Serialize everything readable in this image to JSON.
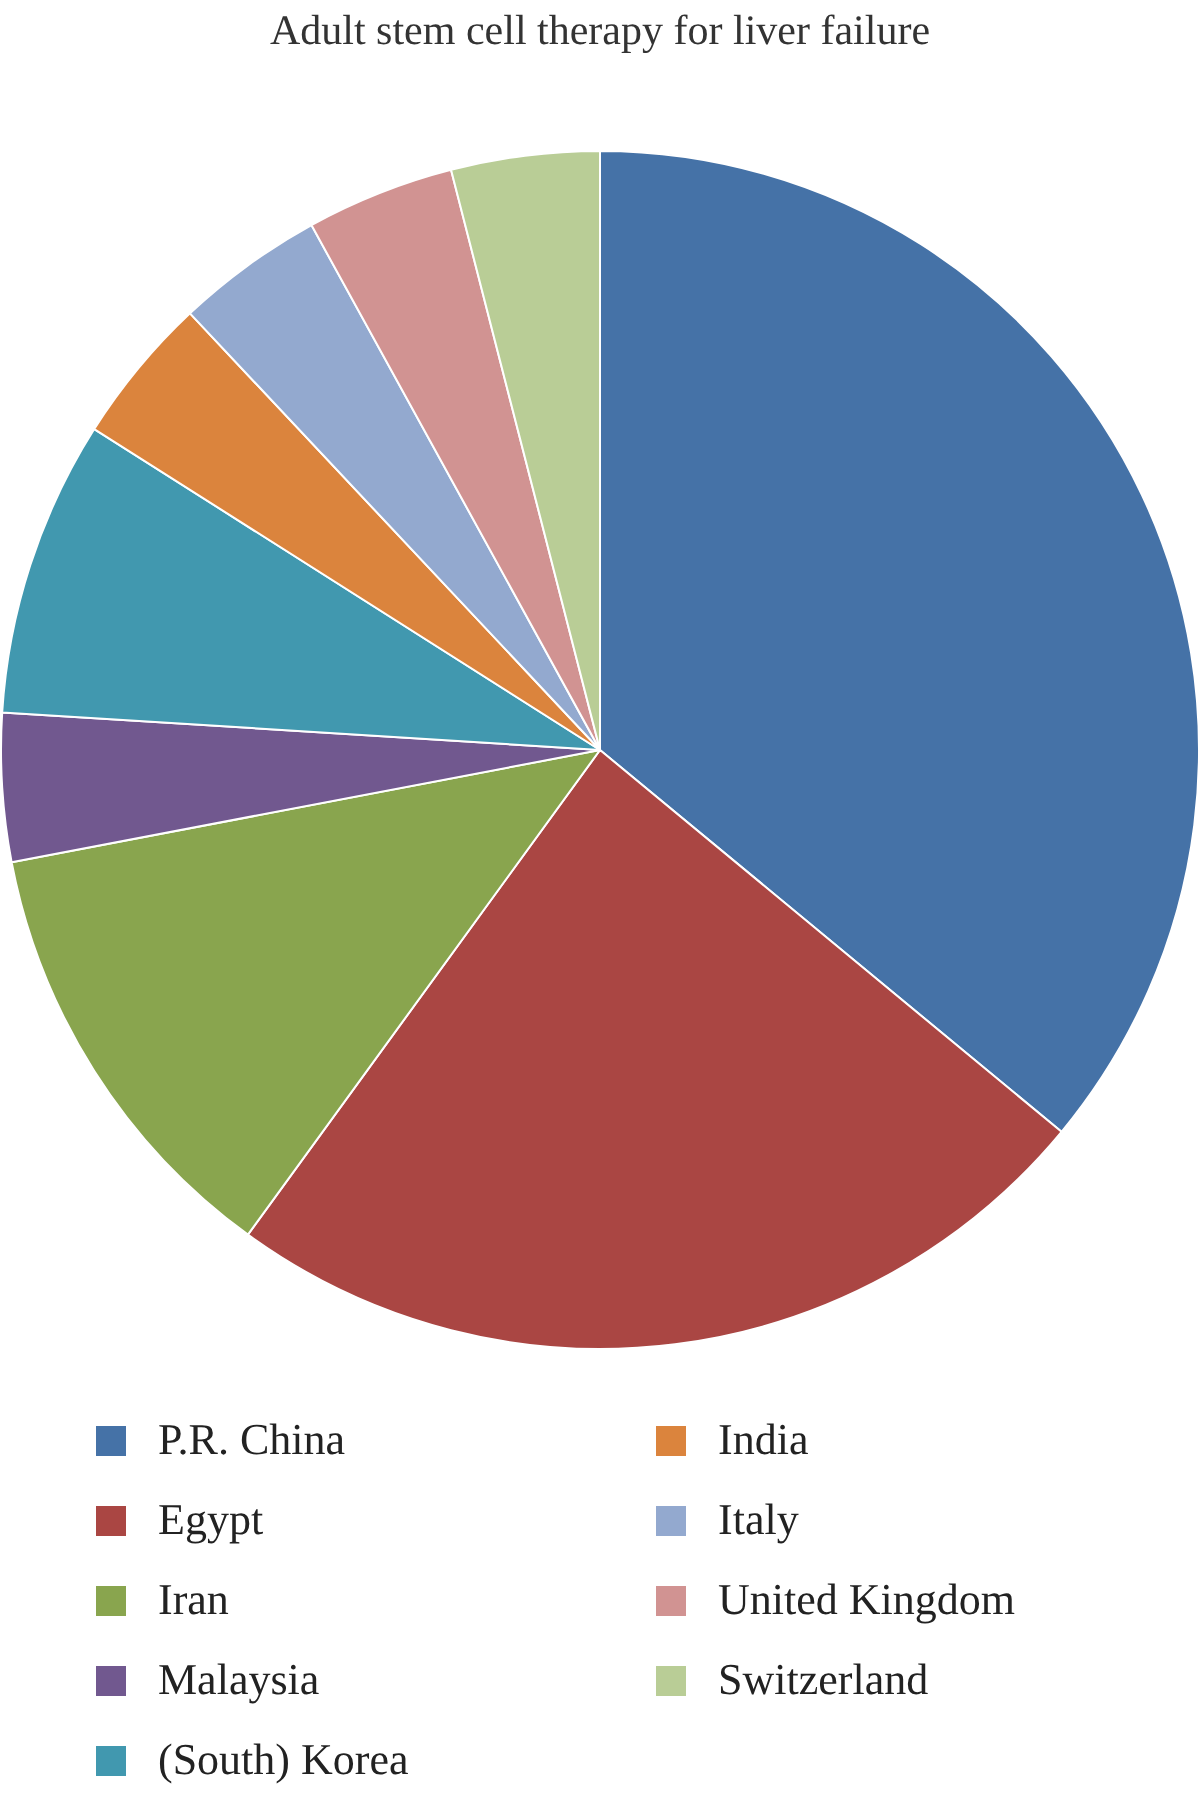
{
  "chart_data": {
    "type": "pie",
    "title": "Adult stem cell therapy for liver failure",
    "categories": [
      "P.R. China",
      "Egypt",
      "Iran",
      "Malaysia",
      "(South) Korea",
      "India",
      "Italy",
      "United Kingdom",
      "Switzerland"
    ],
    "values": [
      36,
      24,
      12,
      4,
      8,
      4,
      4,
      4,
      4
    ],
    "colors": [
      "#4572a7",
      "#aa4643",
      "#89a54e",
      "#71588f",
      "#4198af",
      "#db843d",
      "#93a9cf",
      "#d19392",
      "#b9cd96"
    ],
    "legend": "bottom"
  }
}
